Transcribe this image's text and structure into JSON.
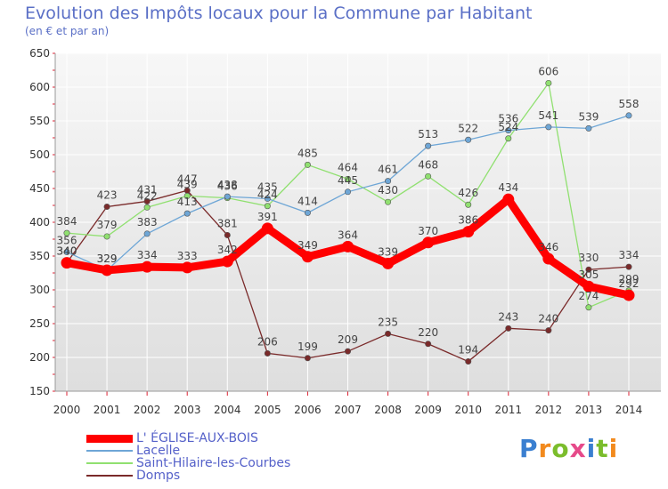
{
  "chart_data": {
    "type": "line",
    "title": "Evolution des Impôts locaux pour la Commune par Habitant",
    "subtitle": "(en € et par an)",
    "x": [
      "2000",
      "2001",
      "2002",
      "2003",
      "2004",
      "2005",
      "2006",
      "2007",
      "2008",
      "2009",
      "2010",
      "2011",
      "2012",
      "2013",
      "2014"
    ],
    "ylim": [
      150,
      650
    ],
    "yticks": [
      150,
      200,
      250,
      300,
      350,
      400,
      450,
      500,
      550,
      600,
      650
    ],
    "series": [
      {
        "name": "Domps",
        "color": "#7a2a2a",
        "emphasis": false,
        "values": [
          340,
          423,
          431,
          447,
          381,
          206,
          199,
          209,
          235,
          220,
          194,
          243,
          240,
          330,
          334
        ]
      },
      {
        "name": "Saint-Hilaire-les-Courbes",
        "color": "#90e070",
        "emphasis": false,
        "values": [
          384,
          379,
          422,
          439,
          436,
          424,
          485,
          464,
          430,
          468,
          426,
          524,
          606,
          274,
          299
        ]
      },
      {
        "name": "Lacelle",
        "color": "#6ea6d6",
        "emphasis": false,
        "values": [
          356,
          329,
          383,
          413,
          438,
          435,
          414,
          445,
          461,
          513,
          522,
          536,
          541,
          539,
          558
        ]
      },
      {
        "name": "L' ÉGLISE-AUX-BOIS",
        "color": "#ff0000",
        "emphasis": true,
        "values": [
          340,
          329,
          334,
          333,
          342,
          391,
          349,
          364,
          339,
          370,
          386,
          434,
          346,
          305,
          292
        ]
      }
    ],
    "legend_order": [
      "L' ÉGLISE-AUX-BOIS",
      "Lacelle",
      "Saint-Hilaire-les-Courbes",
      "Domps"
    ]
  },
  "brand": {
    "logo_text": "Proxiti"
  }
}
